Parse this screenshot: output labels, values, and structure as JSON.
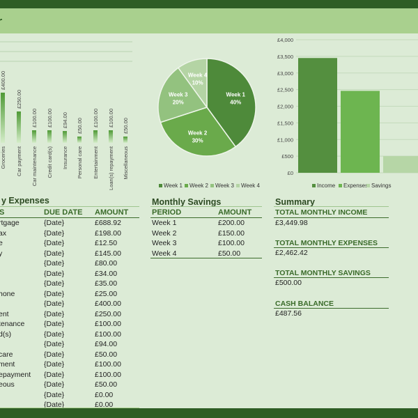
{
  "page": {
    "title_fragment": "r"
  },
  "bar_chart": {
    "categories": [
      "Groceries",
      "Car payment",
      "Car maintenance",
      "Credit card(s)",
      "Insurance",
      "Personal care",
      "Entertainment",
      "Loan(s) repayment",
      "Miscellaneous"
    ],
    "labels": [
      "£400.00",
      "£250.00",
      "£100.00",
      "£100.00",
      "£94.00",
      "£50.00",
      "£100.00",
      "£100.00",
      "£50.00"
    ],
    "values": [
      400,
      250,
      100,
      100,
      94,
      50,
      100,
      100,
      50
    ]
  },
  "pie_chart": {
    "slices": [
      {
        "name": "Week 1",
        "pct": "40%",
        "value": 40,
        "color": "#4e8a3a"
      },
      {
        "name": "Week 2",
        "pct": "30%",
        "value": 30,
        "color": "#6aaa4b"
      },
      {
        "name": "Week 3",
        "pct": "20%",
        "value": 20,
        "color": "#93c27f"
      },
      {
        "name": "Week 4",
        "pct": "10%",
        "value": 10,
        "color": "#b4d4a4"
      }
    ],
    "legend": [
      "Week 1",
      "Week 2",
      "Week 3",
      "Week 4"
    ]
  },
  "chart_data": {
    "type": "bar",
    "categories": [
      "Income",
      "Expenses",
      "Savings"
    ],
    "values": [
      3449.98,
      2462.42,
      500.0
    ],
    "ylim": [
      0,
      4000
    ],
    "yticks": [
      "£0",
      "£500",
      "£1,000",
      "£1,500",
      "£2,000",
      "£2,500",
      "£3,000",
      "£3,500",
      "£4,000"
    ],
    "colors": [
      "#548f3f",
      "#6db550",
      "#b6d6a6"
    ],
    "legend": [
      "Income",
      "Expenses",
      "Savings"
    ]
  },
  "expenses": {
    "title": "y Expenses",
    "col_item": "S",
    "col_due": "DUE DATE",
    "col_amount": "AMOUNT",
    "rows": [
      {
        "item": "rtgage",
        "due": "{Date}",
        "amount": "£688.92"
      },
      {
        "item": "ax",
        "due": "{Date}",
        "amount": "£198.00"
      },
      {
        "item": "e",
        "due": "{Date}",
        "amount": "£12.50"
      },
      {
        "item": "y",
        "due": "{Date}",
        "amount": "£145.00"
      },
      {
        "item": "",
        "due": "{Date}",
        "amount": "£80.00"
      },
      {
        "item": "",
        "due": "{Date}",
        "amount": "£34.00"
      },
      {
        "item": "",
        "due": "{Date}",
        "amount": "£35.00"
      },
      {
        "item": "hone",
        "due": "{Date}",
        "amount": "£25.00"
      },
      {
        "item": "",
        "due": "{Date}",
        "amount": "£400.00"
      },
      {
        "item": "ent",
        "due": "{Date}",
        "amount": "£250.00"
      },
      {
        "item": "tenance",
        "due": "{Date}",
        "amount": "£100.00"
      },
      {
        "item": "d(s)",
        "due": "{Date}",
        "amount": "£100.00"
      },
      {
        "item": "",
        "due": "{Date}",
        "amount": "£94.00"
      },
      {
        "item": "care",
        "due": "{Date}",
        "amount": "£50.00"
      },
      {
        "item": "ment",
        "due": "{Date}",
        "amount": "£100.00"
      },
      {
        "item": "epayment",
        "due": "{Date}",
        "amount": "£100.00"
      },
      {
        "item": "eous",
        "due": "{Date}",
        "amount": "£50.00"
      },
      {
        "item": "",
        "due": "{Date}",
        "amount": "£0.00"
      },
      {
        "item": "",
        "due": "{Date}",
        "amount": "£0.00"
      }
    ]
  },
  "savings": {
    "title": "Monthly Savings",
    "col_period": "PERIOD",
    "col_amount": "AMOUNT",
    "rows": [
      {
        "period": "Week 1",
        "amount": "£200.00"
      },
      {
        "period": "Week 2",
        "amount": "£150.00"
      },
      {
        "period": "Week 3",
        "amount": "£100.00"
      },
      {
        "period": "Week 4",
        "amount": "£50.00"
      }
    ]
  },
  "summary": {
    "title": "Summary",
    "income_label": "TOTAL MONTHLY INCOME",
    "income_value": "£3,449.98",
    "expenses_label": "TOTAL MONTHLY EXPENSES",
    "expenses_value": "£2,462.42",
    "savings_label": "TOTAL MONTHLY SAVINGS",
    "savings_value": "£500.00",
    "cash_label": "CASH BALANCE",
    "cash_value": "£487.56"
  }
}
